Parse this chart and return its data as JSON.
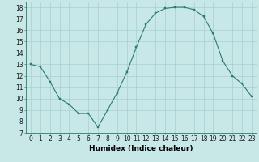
{
  "x": [
    0,
    1,
    2,
    3,
    4,
    5,
    6,
    7,
    8,
    9,
    10,
    11,
    12,
    13,
    14,
    15,
    16,
    17,
    18,
    19,
    20,
    21,
    22,
    23
  ],
  "y": [
    13.0,
    12.8,
    11.5,
    10.0,
    9.5,
    8.7,
    8.7,
    7.5,
    9.0,
    10.5,
    12.3,
    14.5,
    16.5,
    17.5,
    17.9,
    18.0,
    18.0,
    17.8,
    17.2,
    15.7,
    13.3,
    12.0,
    11.3,
    10.2
  ],
  "line_color": "#2d7a6e",
  "marker": "s",
  "marker_size": 2.0,
  "bg_color": "#c8e8e8",
  "grid_color": "#a0c8c8",
  "xlabel": "Humidex (Indice chaleur)",
  "ylim": [
    7,
    18.5
  ],
  "xlim": [
    -0.5,
    23.5
  ],
  "yticks": [
    7,
    8,
    9,
    10,
    11,
    12,
    13,
    14,
    15,
    16,
    17,
    18
  ],
  "xticks": [
    0,
    1,
    2,
    3,
    4,
    5,
    6,
    7,
    8,
    9,
    10,
    11,
    12,
    13,
    14,
    15,
    16,
    17,
    18,
    19,
    20,
    21,
    22,
    23
  ],
  "xtick_labels": [
    "0",
    "1",
    "2",
    "3",
    "4",
    "5",
    "6",
    "7",
    "8",
    "9",
    "10",
    "11",
    "12",
    "13",
    "14",
    "15",
    "16",
    "17",
    "18",
    "19",
    "20",
    "21",
    "22",
    "23"
  ],
  "label_fontsize": 6.5,
  "tick_fontsize": 5.5
}
